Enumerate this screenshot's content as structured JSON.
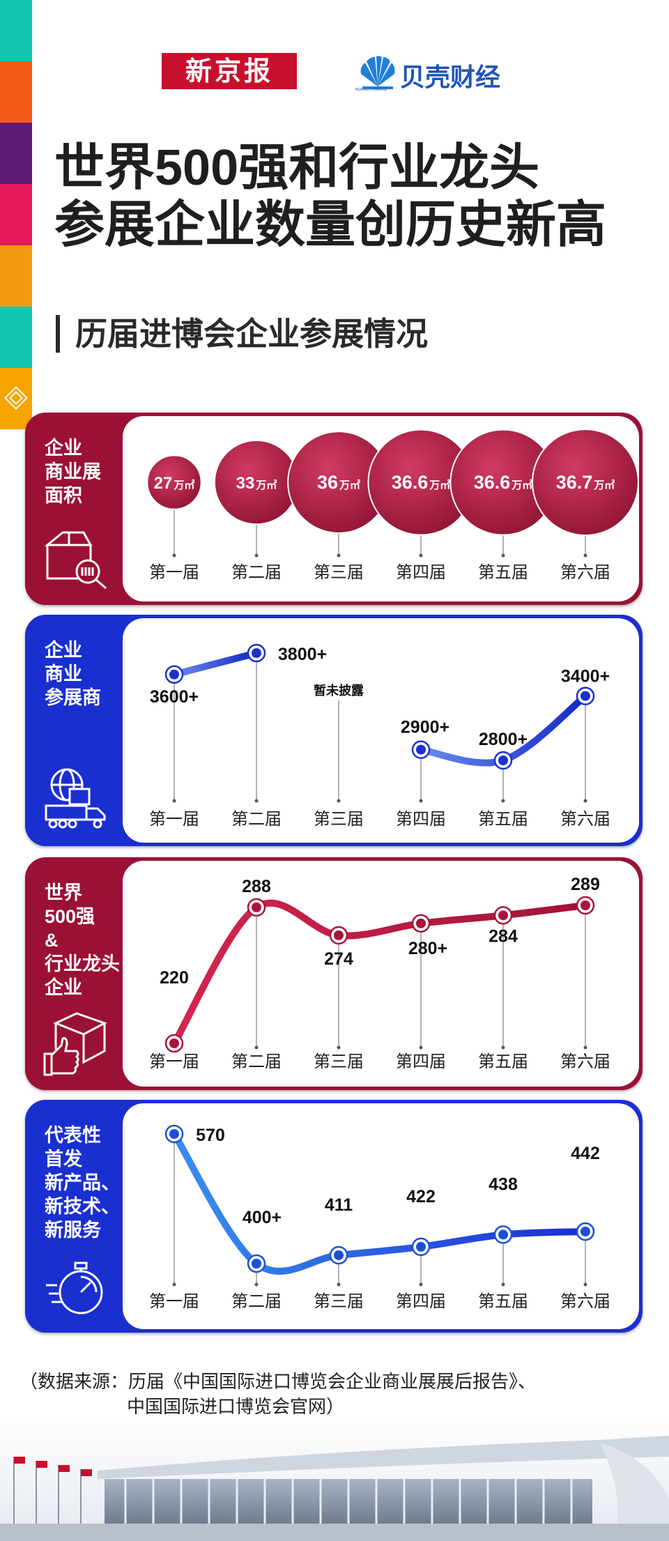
{
  "logos": {
    "xinjingbao": "新京报",
    "beike": "贝壳财经",
    "beike_small": "BEAKELL FINANCE"
  },
  "title": {
    "line1": "世界500强和行业龙头",
    "line2": "参展企业数量创历史新高"
  },
  "subtitle": "历届进博会企业参展情况",
  "colors": {
    "crimson": "#9b1135",
    "blue": "#1a2fd0",
    "stripes": [
      "#14c6b0",
      "#f25a17",
      "#5b1a73",
      "#e8195a",
      "#f39a13",
      "#14c6b0",
      "#f5a400"
    ]
  },
  "panels": [
    {
      "id": "area",
      "label": [
        "企业",
        "商业展",
        "面积"
      ],
      "icon": "box-search-icon"
    },
    {
      "id": "exhibitors",
      "label": [
        "企业",
        "商业",
        "参展商"
      ],
      "icon": "globe-truck-icon"
    },
    {
      "id": "top500",
      "label": [
        "世界",
        "500强",
        "&",
        "行业龙头",
        "企业"
      ],
      "icon": "box-thumbs-up-icon"
    },
    {
      "id": "products",
      "label": [
        "代表性",
        "首发",
        "新产品、",
        "新技术、",
        "新服务"
      ],
      "icon": "stopwatch-icon"
    }
  ],
  "chart_data": [
    {
      "type": "bubble",
      "categories": [
        "第一届",
        "第二届",
        "第三届",
        "第四届",
        "第五届",
        "第六届"
      ],
      "values": [
        27,
        33,
        36,
        36.6,
        36.6,
        36.7
      ],
      "value_labels": [
        "27",
        "33",
        "36",
        "36.6",
        "36.6",
        "36.7"
      ],
      "unit": "万㎡"
    },
    {
      "type": "line",
      "categories": [
        "第一届",
        "第二届",
        "第三届",
        "第四届",
        "第五届",
        "第六届"
      ],
      "values": [
        3600,
        3800,
        null,
        2900,
        2800,
        3400
      ],
      "value_labels": [
        "3600+",
        "3800+",
        "暂未披露",
        "2900+",
        "2800+",
        "3400+"
      ]
    },
    {
      "type": "line",
      "categories": [
        "第一届",
        "第二届",
        "第三届",
        "第四届",
        "第五届",
        "第六届"
      ],
      "values": [
        220,
        288,
        274,
        280,
        284,
        289
      ],
      "value_labels": [
        "220",
        "288",
        "274",
        "280+",
        "284",
        "289"
      ]
    },
    {
      "type": "line",
      "categories": [
        "第一届",
        "第二届",
        "第三届",
        "第四届",
        "第五届",
        "第六届"
      ],
      "values": [
        570,
        400,
        411,
        422,
        438,
        442
      ],
      "value_labels": [
        "570",
        "400+",
        "411",
        "422",
        "438",
        "442"
      ]
    }
  ],
  "source": {
    "line1": "（数据来源：历届《中国国际进口博览会企业商业展展后报告》、",
    "line2": "中国国际进口博览会官网）"
  }
}
